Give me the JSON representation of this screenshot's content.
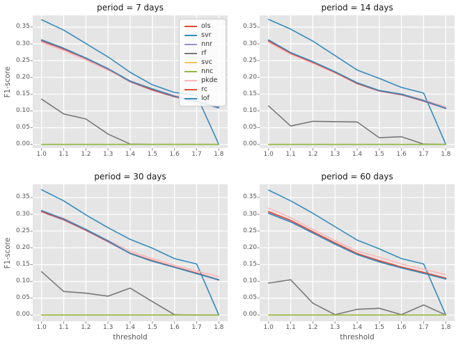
{
  "figure": {
    "background": "#ffffff",
    "axes_background": "#e5e5e5",
    "grid_color": "#ffffff",
    "tick_mark_color": "#808080",
    "tick_label_color": "#555555",
    "title_color": "#151515"
  },
  "axes": {
    "xlabel": "threshold",
    "ylabel": "F1-score",
    "x_tick_labels": [
      "1.0",
      "1.1",
      "1.2",
      "1.3",
      "1.4",
      "1.5",
      "1.6",
      "1.7",
      "1.8"
    ],
    "x_tick_values": [
      1.0,
      1.1,
      1.2,
      1.3,
      1.4,
      1.5,
      1.6,
      1.7,
      1.8
    ],
    "y_tick_labels": [
      "0.00",
      "0.05",
      "0.10",
      "0.15",
      "0.20",
      "0.25",
      "0.30",
      "0.35"
    ],
    "y_tick_values": [
      0.0,
      0.05,
      0.1,
      0.15,
      0.2,
      0.25,
      0.3,
      0.35
    ]
  },
  "legend": {
    "items": [
      {
        "label": "ols",
        "color": "#e24a33"
      },
      {
        "label": "svr",
        "color": "#348abd"
      },
      {
        "label": "nnr",
        "color": "#988ed5"
      },
      {
        "label": "rf",
        "color": "#777777"
      },
      {
        "label": "svc",
        "color": "#fbc15e"
      },
      {
        "label": "nnc",
        "color": "#8eba42"
      },
      {
        "label": "pkde",
        "color": "#ffb5b8"
      },
      {
        "label": "rc",
        "color": "#e24a33"
      },
      {
        "label": "lof",
        "color": "#348abd"
      }
    ]
  },
  "chart_data": [
    {
      "type": "line",
      "title": "period = 7 days",
      "xlabel": "",
      "ylabel": "F1-score",
      "xlim": [
        0.96,
        1.84
      ],
      "ylim": [
        -0.011,
        0.3852
      ],
      "grid": true,
      "legend_position": "upper right",
      "x": [
        1.0,
        1.1,
        1.2,
        1.3,
        1.4,
        1.5,
        1.6,
        1.7,
        1.8
      ],
      "series": [
        {
          "name": "ols",
          "color": "#e24a33",
          "values": [
            0.309,
            0.284,
            0.256,
            0.224,
            0.187,
            0.162,
            0.142,
            0.127,
            0.109
          ]
        },
        {
          "name": "svr",
          "color": "#348abd",
          "values": [
            0.372,
            0.341,
            0.301,
            0.261,
            0.215,
            0.178,
            0.155,
            0.146,
            0.0
          ]
        },
        {
          "name": "nnr",
          "color": "#988ed5",
          "values": [
            0.309,
            0.284,
            0.256,
            0.224,
            0.187,
            0.162,
            0.142,
            0.127,
            0.109
          ]
        },
        {
          "name": "rf",
          "color": "#777777",
          "values": [
            0.135,
            0.091,
            0.076,
            0.031,
            0.001,
            0.0,
            0.0,
            0.0,
            0.0
          ]
        },
        {
          "name": "svc",
          "color": "#fbc15e",
          "values": [
            0.0,
            0.0,
            0.0,
            0.0,
            0.0,
            0.0,
            0.0,
            0.0,
            0.0
          ]
        },
        {
          "name": "nnc",
          "color": "#8eba42",
          "values": [
            0.0,
            0.0,
            0.0,
            0.0,
            0.0,
            0.0,
            0.0,
            0.0,
            0.0
          ]
        },
        {
          "name": "pkde",
          "color": "#ffb5b8",
          "values": [
            0.305,
            0.28,
            0.252,
            0.221,
            0.19,
            0.165,
            0.146,
            0.132,
            0.113
          ]
        },
        {
          "name": "rc",
          "color": "#e24a33",
          "values": [
            0.31,
            0.285,
            0.257,
            0.225,
            0.188,
            0.163,
            0.143,
            0.128,
            0.11
          ]
        },
        {
          "name": "lof",
          "color": "#348abd",
          "values": [
            0.312,
            0.287,
            0.258,
            0.226,
            0.189,
            0.166,
            0.144,
            0.129,
            0.11
          ]
        }
      ]
    },
    {
      "type": "line",
      "title": "period = 14 days",
      "xlabel": "",
      "ylabel": "",
      "xlim": [
        0.96,
        1.84
      ],
      "ylim": [
        -0.011,
        0.3852
      ],
      "grid": true,
      "x": [
        1.0,
        1.1,
        1.2,
        1.3,
        1.4,
        1.5,
        1.6,
        1.7,
        1.8
      ],
      "series": [
        {
          "name": "ols",
          "color": "#e24a33",
          "values": [
            0.308,
            0.271,
            0.244,
            0.214,
            0.181,
            0.159,
            0.148,
            0.129,
            0.107
          ]
        },
        {
          "name": "svr",
          "color": "#348abd",
          "values": [
            0.373,
            0.344,
            0.308,
            0.265,
            0.222,
            0.197,
            0.17,
            0.153,
            0.0
          ]
        },
        {
          "name": "nnr",
          "color": "#988ed5",
          "values": [
            0.308,
            0.271,
            0.244,
            0.214,
            0.181,
            0.159,
            0.148,
            0.129,
            0.107
          ]
        },
        {
          "name": "rf",
          "color": "#777777",
          "values": [
            0.115,
            0.055,
            0.069,
            0.068,
            0.067,
            0.02,
            0.023,
            0.001,
            0.0
          ]
        },
        {
          "name": "svc",
          "color": "#fbc15e",
          "values": [
            0.0,
            0.0,
            0.0,
            0.0,
            0.0,
            0.0,
            0.0,
            0.0,
            0.0
          ]
        },
        {
          "name": "nnc",
          "color": "#8eba42",
          "values": [
            0.0,
            0.0,
            0.0,
            0.0,
            0.0,
            0.0,
            0.0,
            0.0,
            0.0
          ]
        },
        {
          "name": "pkde",
          "color": "#ffb5b8",
          "values": [
            0.305,
            0.269,
            0.242,
            0.213,
            0.182,
            0.16,
            0.151,
            0.133,
            0.112
          ]
        },
        {
          "name": "rc",
          "color": "#e24a33",
          "values": [
            0.309,
            0.272,
            0.245,
            0.215,
            0.182,
            0.16,
            0.149,
            0.13,
            0.108
          ]
        },
        {
          "name": "lof",
          "color": "#348abd",
          "values": [
            0.312,
            0.274,
            0.247,
            0.217,
            0.184,
            0.161,
            0.15,
            0.131,
            0.108
          ]
        }
      ]
    },
    {
      "type": "line",
      "title": "period = 30 days",
      "xlabel": "threshold",
      "ylabel": "F1-score",
      "xlim": [
        0.96,
        1.84
      ],
      "ylim": [
        -0.0187,
        0.3893
      ],
      "grid": true,
      "x": [
        1.0,
        1.1,
        1.2,
        1.3,
        1.4,
        1.5,
        1.6,
        1.7,
        1.8
      ],
      "series": [
        {
          "name": "ols",
          "color": "#e24a33",
          "values": [
            0.307,
            0.283,
            0.252,
            0.218,
            0.183,
            0.161,
            0.142,
            0.124,
            0.104
          ]
        },
        {
          "name": "svr",
          "color": "#348abd",
          "values": [
            0.373,
            0.34,
            0.298,
            0.26,
            0.225,
            0.199,
            0.168,
            0.152,
            0.0
          ]
        },
        {
          "name": "nnr",
          "color": "#988ed5",
          "values": [
            0.307,
            0.283,
            0.252,
            0.218,
            0.183,
            0.161,
            0.142,
            0.124,
            0.104
          ]
        },
        {
          "name": "rf",
          "color": "#777777",
          "values": [
            0.129,
            0.07,
            0.065,
            0.056,
            0.08,
            0.04,
            0.001,
            0.0,
            0.0
          ]
        },
        {
          "name": "svc",
          "color": "#fbc15e",
          "values": [
            0.0,
            0.0,
            0.0,
            0.0,
            0.0,
            0.0,
            0.0,
            0.0,
            0.0
          ]
        },
        {
          "name": "nnc",
          "color": "#8eba42",
          "values": [
            0.0,
            0.0,
            0.0,
            0.0,
            0.0,
            0.0,
            0.0,
            0.0,
            0.0
          ]
        },
        {
          "name": "pkde",
          "color": "#ffb5b8",
          "values": [
            0.306,
            0.289,
            0.254,
            0.222,
            0.19,
            0.168,
            0.148,
            0.131,
            0.114
          ]
        },
        {
          "name": "rc",
          "color": "#e24a33",
          "values": [
            0.308,
            0.284,
            0.253,
            0.219,
            0.184,
            0.162,
            0.143,
            0.125,
            0.105
          ]
        },
        {
          "name": "lof",
          "color": "#348abd",
          "values": [
            0.311,
            0.286,
            0.255,
            0.221,
            0.183,
            0.16,
            0.142,
            0.123,
            0.105
          ]
        }
      ]
    },
    {
      "type": "line",
      "title": "period = 60 days",
      "xlabel": "threshold",
      "ylabel": "",
      "xlim": [
        0.96,
        1.84
      ],
      "ylim": [
        -0.0187,
        0.3893
      ],
      "grid": true,
      "x": [
        1.0,
        1.1,
        1.2,
        1.3,
        1.4,
        1.5,
        1.6,
        1.7,
        1.8
      ],
      "series": [
        {
          "name": "ols",
          "color": "#e24a33",
          "values": [
            0.307,
            0.281,
            0.247,
            0.214,
            0.182,
            0.161,
            0.142,
            0.126,
            0.109
          ]
        },
        {
          "name": "svr",
          "color": "#348abd",
          "values": [
            0.372,
            0.34,
            0.303,
            0.263,
            0.223,
            0.197,
            0.168,
            0.152,
            0.0
          ]
        },
        {
          "name": "nnr",
          "color": "#988ed5",
          "values": [
            0.307,
            0.281,
            0.247,
            0.214,
            0.182,
            0.161,
            0.142,
            0.126,
            0.109
          ]
        },
        {
          "name": "rf",
          "color": "#777777",
          "values": [
            0.095,
            0.105,
            0.035,
            0.001,
            0.017,
            0.02,
            0.001,
            0.03,
            0.0
          ]
        },
        {
          "name": "svc",
          "color": "#fbc15e",
          "values": [
            0.0,
            0.0,
            0.0,
            0.0,
            0.0,
            0.0,
            0.0,
            0.0,
            0.0
          ]
        },
        {
          "name": "nnc",
          "color": "#8eba42",
          "values": [
            0.0,
            0.0,
            0.0,
            0.0,
            0.0,
            0.0,
            0.0,
            0.0,
            0.0
          ]
        },
        {
          "name": "pkde",
          "color": "#ffb5b8",
          "values": [
            0.318,
            0.29,
            0.255,
            0.222,
            0.19,
            0.172,
            0.152,
            0.136,
            0.12
          ]
        },
        {
          "name": "rc",
          "color": "#e24a33",
          "values": [
            0.308,
            0.282,
            0.248,
            0.215,
            0.183,
            0.162,
            0.143,
            0.127,
            0.11
          ]
        },
        {
          "name": "lof",
          "color": "#348abd",
          "values": [
            0.303,
            0.277,
            0.244,
            0.211,
            0.18,
            0.158,
            0.14,
            0.124,
            0.107
          ]
        }
      ]
    }
  ]
}
